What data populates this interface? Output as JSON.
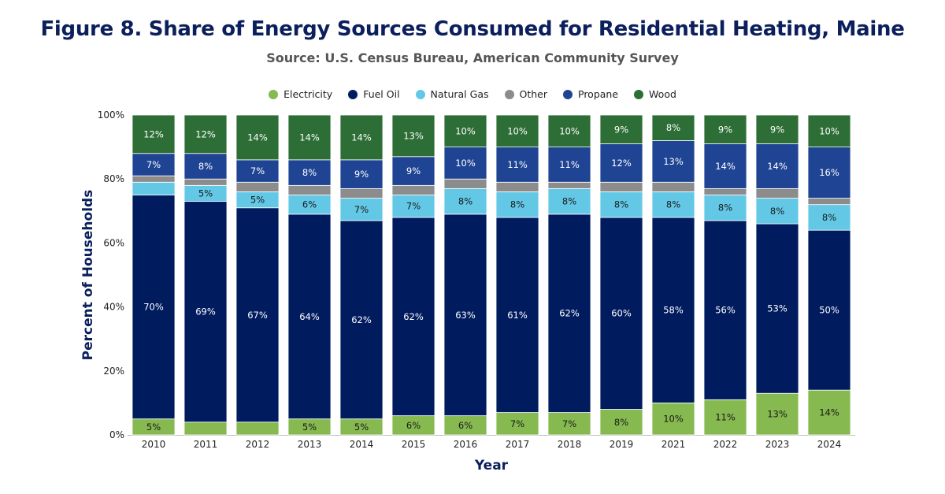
{
  "title": "Figure 8. Share of Energy Sources Consumed for Residential Heating, Maine",
  "subtitle": "Source: U.S. Census Bureau, American Community Survey",
  "colors": {
    "Electricity": "#86b94f",
    "Fuel Oil": "#001b5e",
    "Natural Gas": "#63c8e6",
    "Other": "#8c8c8c",
    "Propane": "#1f4493",
    "Wood": "#2d6e36"
  },
  "chart_data": {
    "type": "bar",
    "stacked": true,
    "xlabel": "Year",
    "ylabel": "Percent of Households",
    "ylim": [
      0,
      100
    ],
    "yticks": [
      "0%",
      "20%",
      "40%",
      "60%",
      "80%",
      "100%"
    ],
    "legend_position": "top",
    "categories": [
      "2010",
      "2011",
      "2012",
      "2013",
      "2014",
      "2015",
      "2016",
      "2017",
      "2018",
      "2019",
      "2021",
      "2022",
      "2023",
      "2024"
    ],
    "series": [
      {
        "name": "Electricity",
        "values": [
          5,
          4,
          4,
          5,
          5,
          6,
          6,
          7,
          7,
          8,
          10,
          11,
          13,
          14
        ],
        "labels": [
          "5%",
          "",
          "",
          "5%",
          "5%",
          "6%",
          "6%",
          "7%",
          "7%",
          "8%",
          "10%",
          "11%",
          "13%",
          "14%"
        ]
      },
      {
        "name": "Fuel Oil",
        "values": [
          70,
          69,
          67,
          64,
          62,
          62,
          63,
          61,
          62,
          60,
          58,
          56,
          53,
          50
        ],
        "labels": [
          "70%",
          "69%",
          "67%",
          "64%",
          "62%",
          "62%",
          "63%",
          "61%",
          "62%",
          "60%",
          "58%",
          "56%",
          "53%",
          "50%"
        ]
      },
      {
        "name": "Natural Gas",
        "values": [
          4,
          5,
          5,
          6,
          7,
          7,
          8,
          8,
          8,
          8,
          8,
          8,
          8,
          8
        ],
        "labels": [
          "",
          "5%",
          "5%",
          "6%",
          "7%",
          "7%",
          "8%",
          "8%",
          "8%",
          "8%",
          "8%",
          "8%",
          "8%",
          "8%"
        ]
      },
      {
        "name": "Other",
        "values": [
          2,
          2,
          3,
          3,
          3,
          3,
          3,
          3,
          2,
          3,
          3,
          2,
          3,
          2
        ],
        "labels": [
          "",
          "",
          "",
          "",
          "",
          "",
          "",
          "",
          "",
          "",
          "",
          "",
          "",
          ""
        ]
      },
      {
        "name": "Propane",
        "values": [
          7,
          8,
          7,
          8,
          9,
          9,
          10,
          11,
          11,
          12,
          13,
          14,
          14,
          16
        ],
        "labels": [
          "7%",
          "8%",
          "7%",
          "8%",
          "9%",
          "9%",
          "10%",
          "11%",
          "11%",
          "12%",
          "13%",
          "14%",
          "14%",
          "16%"
        ]
      },
      {
        "name": "Wood",
        "values": [
          12,
          12,
          14,
          14,
          14,
          13,
          10,
          10,
          10,
          9,
          8,
          9,
          9,
          10
        ],
        "labels": [
          "12%",
          "12%",
          "14%",
          "14%",
          "14%",
          "13%",
          "10%",
          "10%",
          "10%",
          "9%",
          "8%",
          "9%",
          "9%",
          "10%"
        ]
      }
    ]
  }
}
